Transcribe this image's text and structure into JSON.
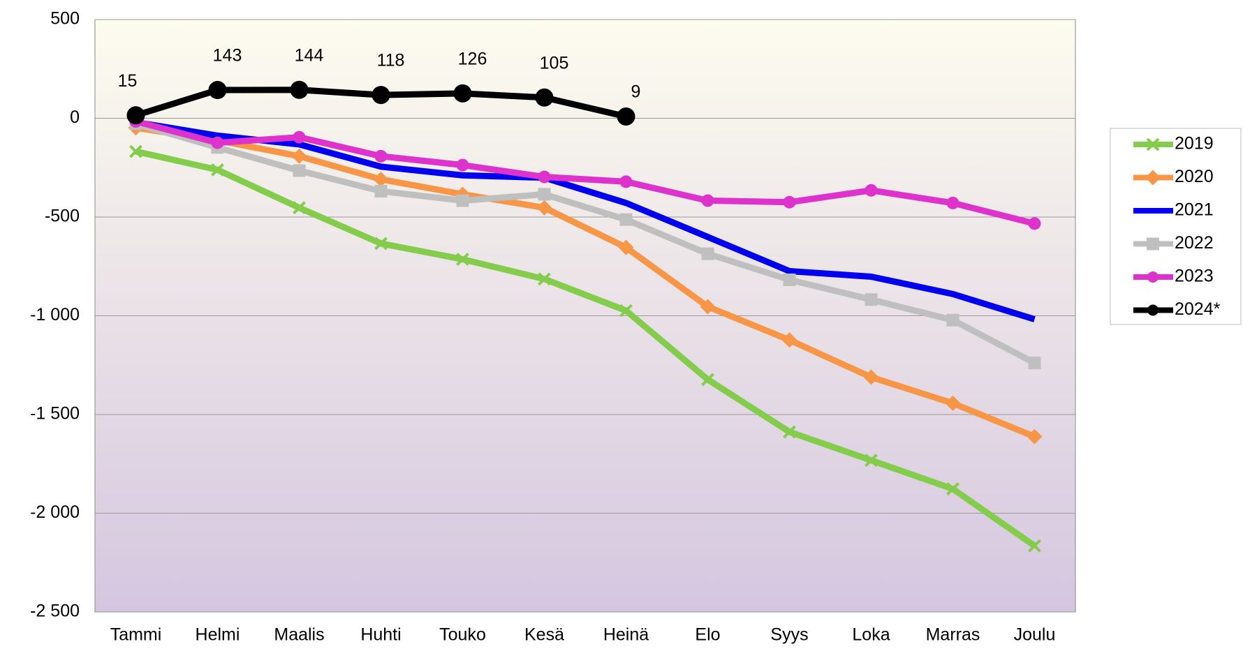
{
  "chart_data": {
    "type": "line",
    "categories": [
      "Tammi",
      "Helmi",
      "Maalis",
      "Huhti",
      "Touko",
      "Kesä",
      "Heinä",
      "Elo",
      "Syys",
      "Loka",
      "Marras",
      "Joulu"
    ],
    "ylim": [
      -2500,
      500
    ],
    "yticks": [
      {
        "value": -2500,
        "label": "-2 500"
      },
      {
        "value": -2000,
        "label": "-2 000"
      },
      {
        "value": -1500,
        "label": "-1 500"
      },
      {
        "value": -1000,
        "label": "-1 000"
      },
      -500,
      0,
      500
    ],
    "grid": true,
    "legend": "right",
    "series": [
      {
        "name": "2019",
        "color": "#84cc4c",
        "marker": "x",
        "values": [
          -168,
          -261,
          -453,
          -634,
          -714,
          -814,
          -974,
          -1323,
          -1588,
          -1732,
          -1877,
          -2165
        ]
      },
      {
        "name": "2020",
        "color": "#f79646",
        "marker": "diamond",
        "values": [
          -48,
          -112,
          -192,
          -309,
          -385,
          -453,
          -654,
          -954,
          -1123,
          -1311,
          -1443,
          -1612
        ]
      },
      {
        "name": "2021",
        "color": "#0000ee",
        "marker": "none",
        "values": [
          -20,
          -88,
          -132,
          -245,
          -289,
          -301,
          -429,
          -601,
          -774,
          -802,
          -890,
          -1018
        ]
      },
      {
        "name": "2022",
        "color": "#bfbfbf",
        "marker": "square",
        "values": [
          -28,
          -148,
          -265,
          -369,
          -417,
          -385,
          -513,
          -686,
          -818,
          -918,
          -1022,
          -1239
        ]
      },
      {
        "name": "2023",
        "color": "#dd33cc",
        "marker": "circle",
        "values": [
          -16,
          -124,
          -96,
          -192,
          -237,
          -297,
          -321,
          -417,
          -425,
          -365,
          -429,
          -533
        ]
      },
      {
        "name": "2024*",
        "color": "#000000",
        "marker": "circle",
        "data_labels": true,
        "values": [
          15,
          143,
          144,
          118,
          126,
          105,
          9,
          null,
          null,
          null,
          null,
          null
        ]
      }
    ]
  }
}
